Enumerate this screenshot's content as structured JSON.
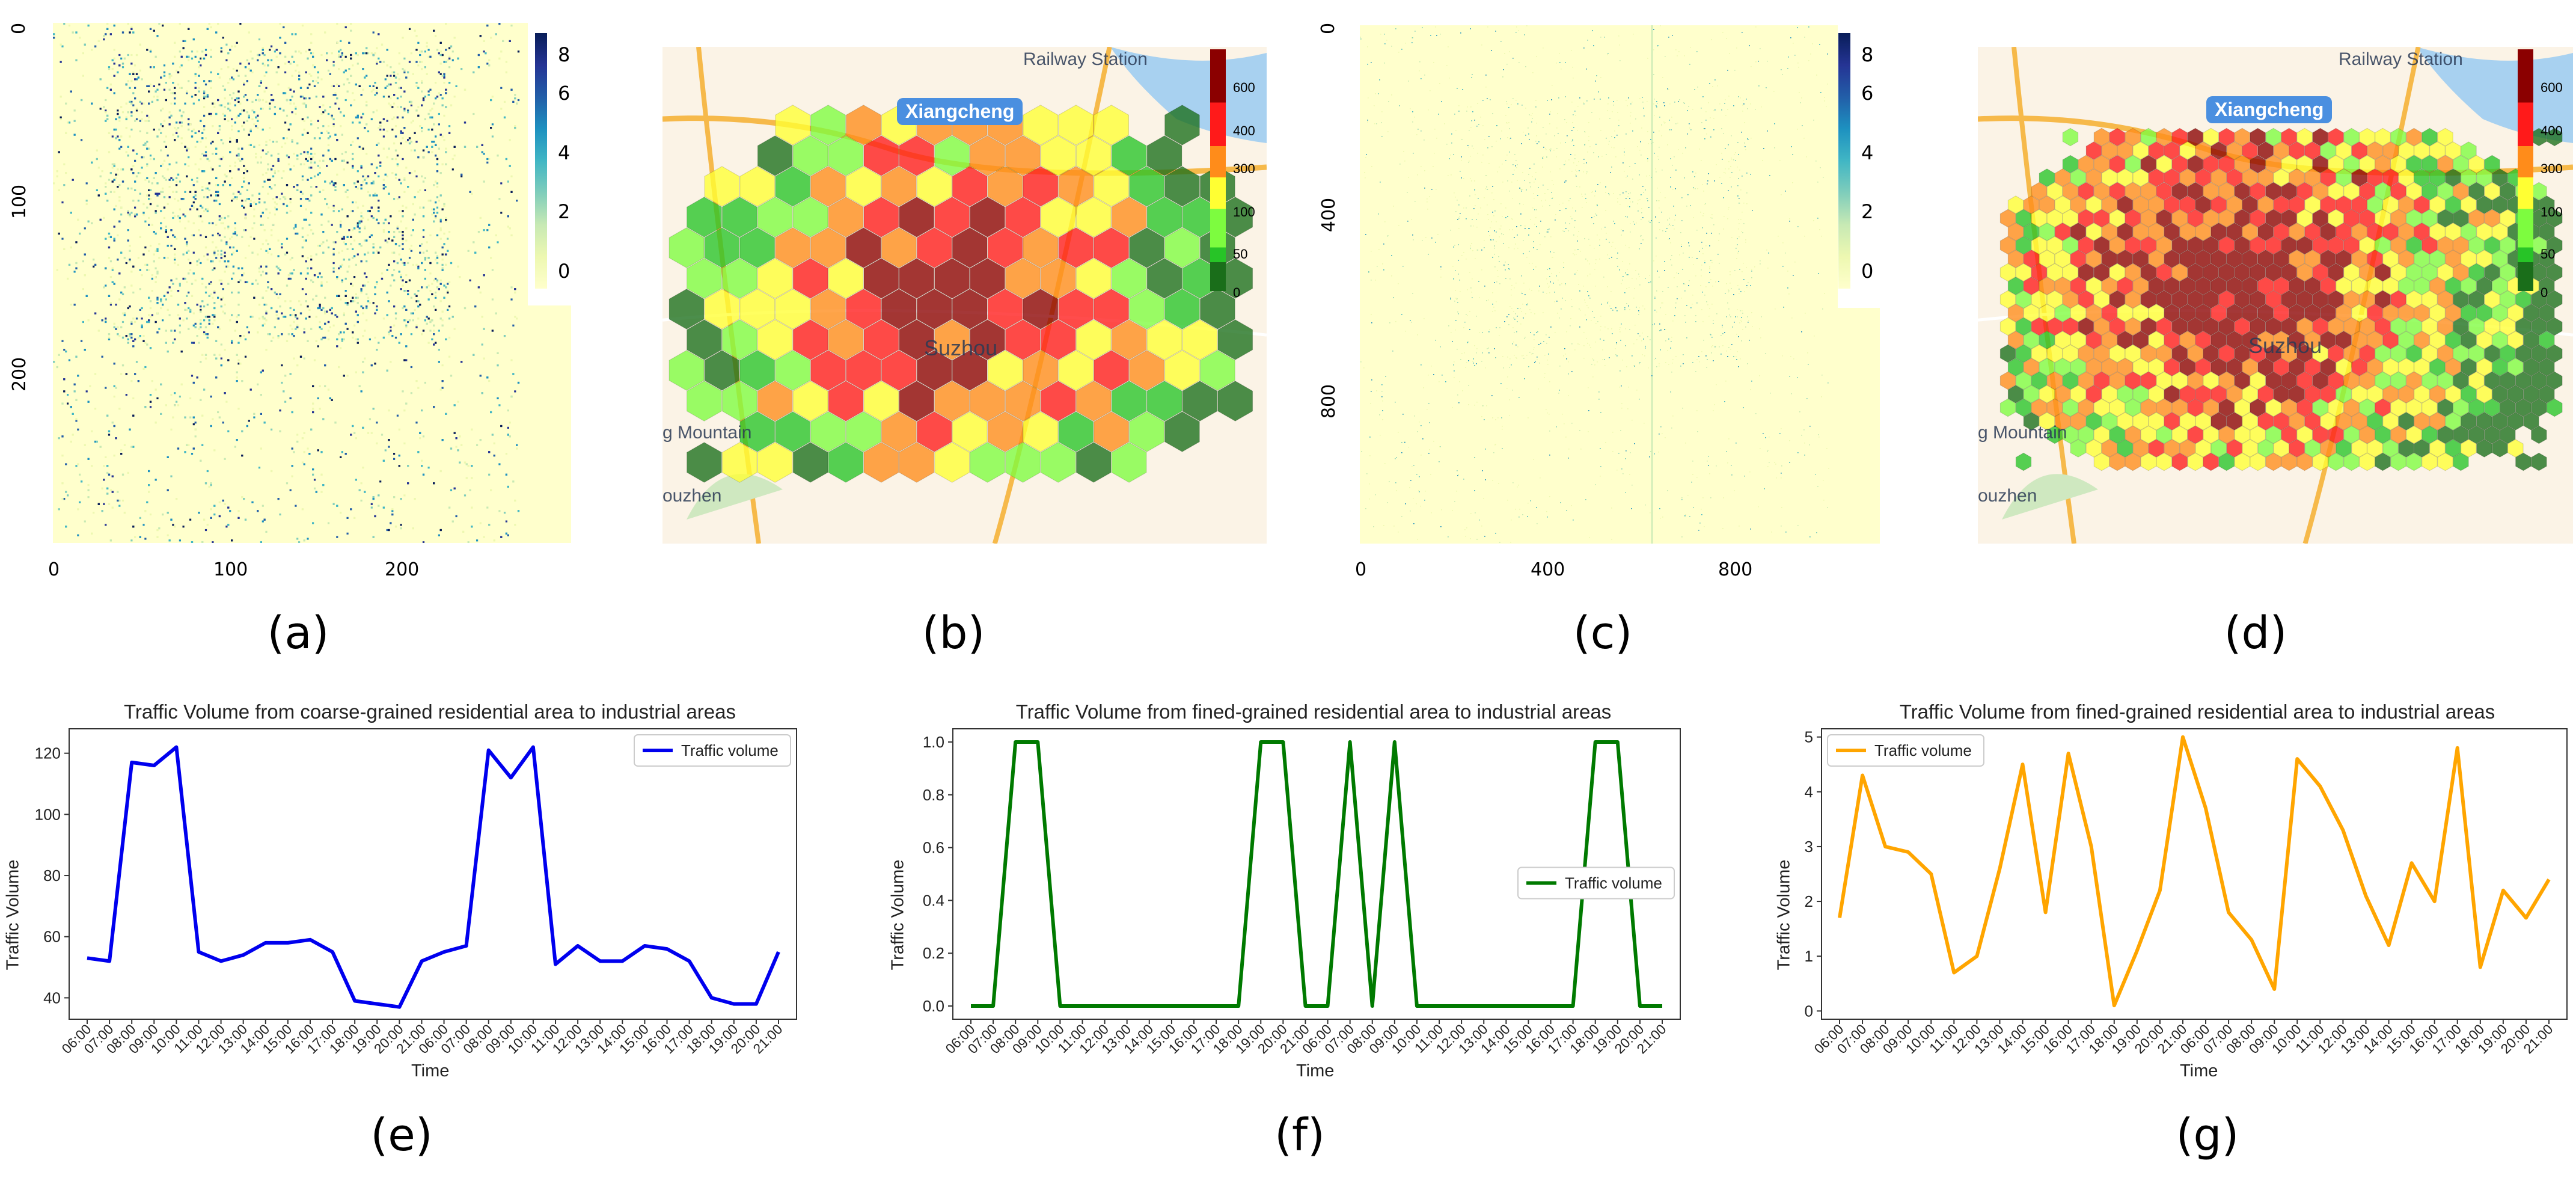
{
  "captions": {
    "a": "(a)",
    "b": "(b)",
    "c": "(c)",
    "d": "(d)",
    "e": "(e)",
    "f": "(f)",
    "g": "(g)"
  },
  "heatmap_a": {
    "x_ticks": [
      "0",
      "100",
      "200"
    ],
    "y_ticks": [
      "0",
      "100",
      "200"
    ],
    "colorbar_ticks": [
      "8",
      "6",
      "4",
      "2",
      "0"
    ],
    "colors": {
      "low": "#ffffcc",
      "mid": "#41b6c4",
      "high": "#081d58"
    }
  },
  "heatmap_c": {
    "x_ticks": [
      "0",
      "400",
      "800"
    ],
    "y_ticks": [
      "0",
      "400",
      "800"
    ],
    "colorbar_ticks": [
      "8",
      "6",
      "4",
      "2",
      "0"
    ]
  },
  "map_b": {
    "labels": {
      "railway": "Railway Station",
      "city": "Xiangcheng",
      "center": "Suzhou",
      "mountain": "g Mountain",
      "zhen": "ouzhen"
    },
    "colorbar_ticks": [
      "600",
      "400",
      "300",
      "100",
      "50",
      "0"
    ],
    "colors": {
      "0": "#1a6e1a",
      "50": "#27c427",
      "100": "#7dfc3f",
      "300": "#ffff33",
      "400": "#ff8c1a",
      "600": "#ff1a1a",
      "max": "#8b0000"
    }
  },
  "map_d": {
    "labels": {
      "railway": "Railway Station",
      "city": "Xiangcheng",
      "center": "Suzhou",
      "mountain": "g Mountain",
      "zhen": "ouzhen"
    },
    "colorbar_ticks": [
      "600",
      "400",
      "300",
      "100",
      "50",
      "0"
    ]
  },
  "chart_data": [
    {
      "type": "line",
      "title": "Traffic Volume from coarse-grained residential area to industrial areas",
      "xlabel": "Time",
      "ylabel": "Traffic Volume",
      "x": [
        "06:00",
        "07:00",
        "08:00",
        "09:00",
        "10:00",
        "11:00",
        "12:00",
        "13:00",
        "14:00",
        "15:00",
        "16:00",
        "17:00",
        "18:00",
        "19:00",
        "20:00",
        "21:00",
        "06:00",
        "07:00",
        "08:00",
        "09:00",
        "10:00",
        "11:00",
        "12:00",
        "13:00",
        "14:00",
        "15:00",
        "16:00",
        "17:00",
        "18:00",
        "19:00",
        "20:00",
        "21:00"
      ],
      "series": [
        {
          "name": "Traffic volume",
          "color": "#0000ee",
          "values": [
            53,
            52,
            117,
            116,
            122,
            55,
            52,
            54,
            58,
            58,
            59,
            55,
            39,
            38,
            37,
            52,
            55,
            57,
            121,
            112,
            122,
            51,
            57,
            52,
            52,
            57,
            56,
            52,
            40,
            38,
            38,
            55
          ]
        }
      ],
      "y_ticks": [
        40,
        60,
        80,
        100,
        120
      ],
      "ylim": [
        33,
        128
      ],
      "legend": "top-right",
      "grid": false
    },
    {
      "type": "line",
      "title": "Traffic Volume from fined-grained residential area to industrial areas",
      "xlabel": "Time",
      "ylabel": "Traffic Volume",
      "x": [
        "06:00",
        "07:00",
        "08:00",
        "09:00",
        "10:00",
        "11:00",
        "12:00",
        "13:00",
        "14:00",
        "15:00",
        "16:00",
        "17:00",
        "18:00",
        "19:00",
        "20:00",
        "21:00",
        "06:00",
        "07:00",
        "08:00",
        "09:00",
        "10:00",
        "11:00",
        "12:00",
        "13:00",
        "14:00",
        "15:00",
        "16:00",
        "17:00",
        "18:00",
        "19:00",
        "20:00",
        "21:00"
      ],
      "series": [
        {
          "name": "Traffic volume",
          "color": "#007a00",
          "values": [
            0,
            0,
            1,
            1,
            0,
            0,
            0,
            0,
            0,
            0,
            0,
            0,
            0,
            1,
            1,
            0,
            0,
            1,
            0,
            1,
            0,
            0,
            0,
            0,
            0,
            0,
            0,
            0,
            1,
            1,
            0,
            0
          ]
        }
      ],
      "y_ticks": [
        0.0,
        0.2,
        0.4,
        0.6,
        0.8,
        1.0
      ],
      "y_tick_labels": [
        "0.0",
        "0.2",
        "0.4",
        "0.6",
        "0.8",
        "1.0"
      ],
      "ylim": [
        -0.05,
        1.05
      ],
      "legend": "center-right",
      "grid": false
    },
    {
      "type": "line",
      "title": "Traffic Volume from fined-grained residential area to industrial areas",
      "xlabel": "Time",
      "ylabel": "Traffic Volume",
      "x": [
        "06:00",
        "07:00",
        "08:00",
        "09:00",
        "10:00",
        "11:00",
        "12:00",
        "13:00",
        "14:00",
        "15:00",
        "16:00",
        "17:00",
        "18:00",
        "19:00",
        "20:00",
        "21:00",
        "06:00",
        "07:00",
        "08:00",
        "09:00",
        "10:00",
        "11:00",
        "12:00",
        "13:00",
        "14:00",
        "15:00",
        "16:00",
        "17:00",
        "18:00",
        "19:00",
        "20:00",
        "21:00"
      ],
      "series": [
        {
          "name": "Traffic volume",
          "color": "#ffa500",
          "values": [
            1.7,
            4.3,
            3.0,
            2.9,
            2.5,
            0.7,
            1.0,
            2.6,
            4.5,
            1.8,
            4.7,
            3.0,
            0.1,
            1.1,
            2.2,
            5.0,
            3.7,
            1.8,
            1.3,
            0.4,
            4.6,
            4.1,
            3.3,
            2.1,
            1.2,
            2.7,
            2.0,
            4.8,
            0.8,
            2.2,
            1.7,
            2.4
          ]
        }
      ],
      "y_ticks": [
        0,
        1,
        2,
        3,
        4,
        5
      ],
      "ylim": [
        -0.15,
        5.15
      ],
      "legend": "top-left",
      "grid": false
    }
  ]
}
